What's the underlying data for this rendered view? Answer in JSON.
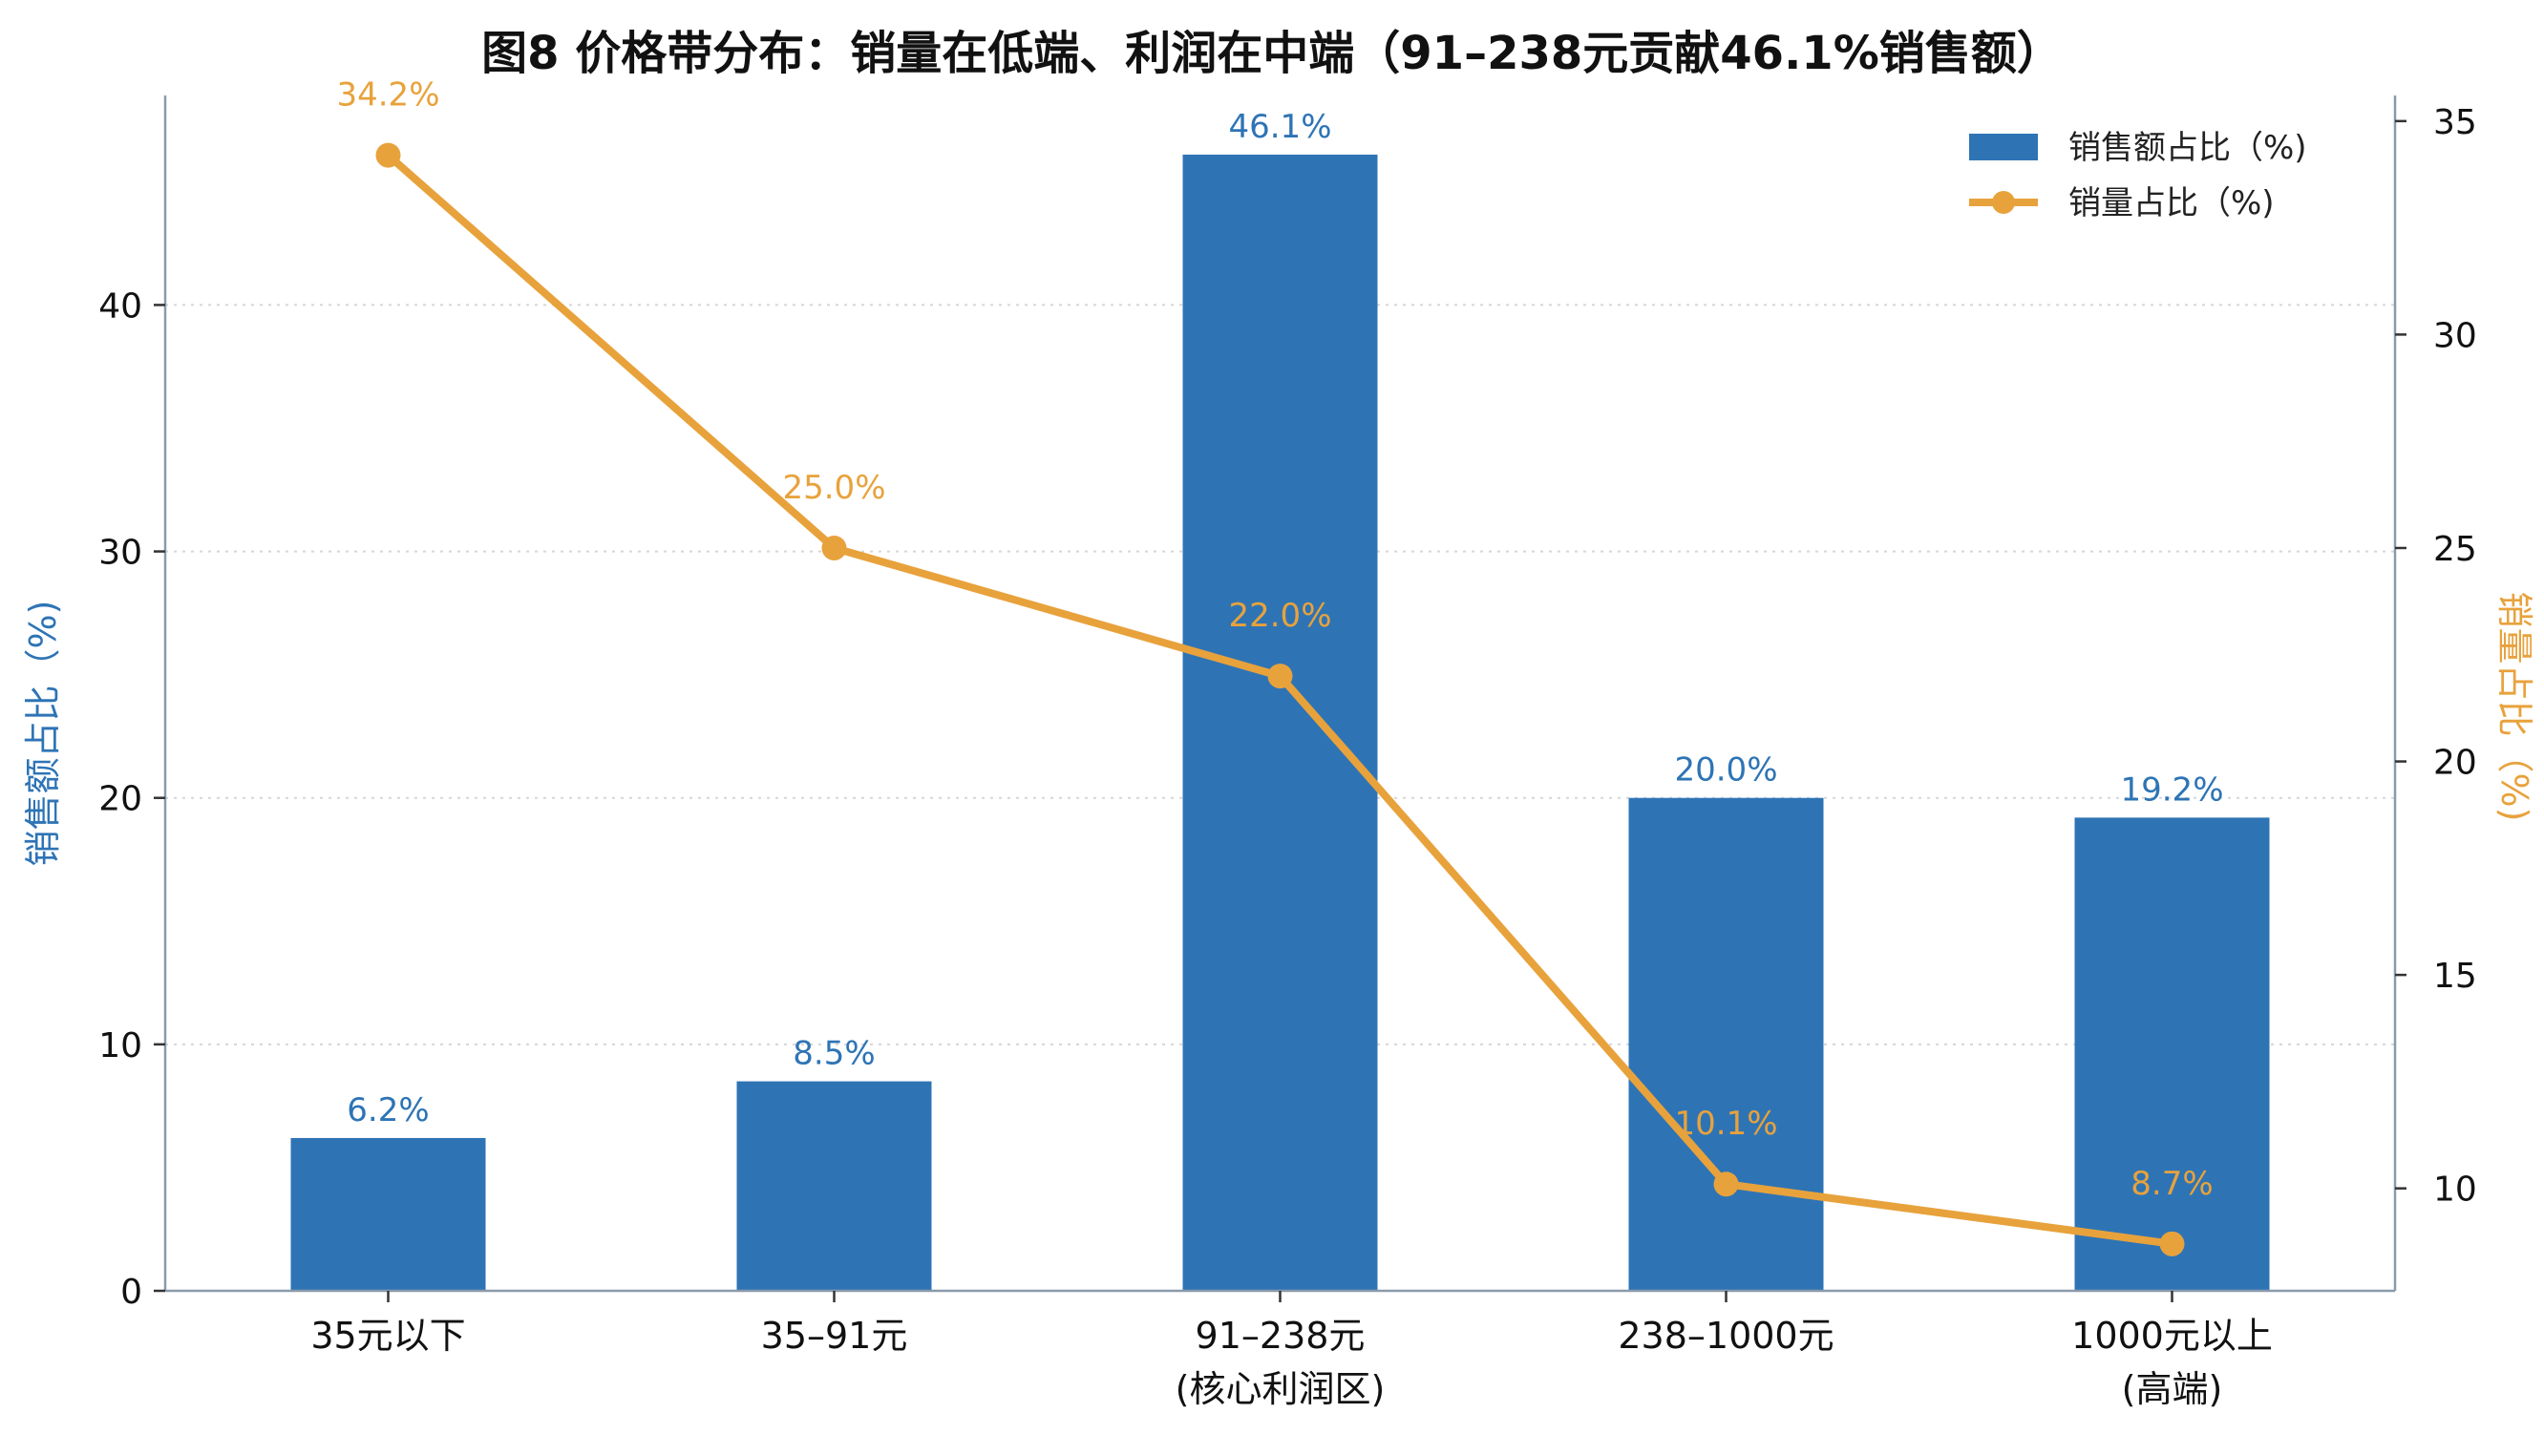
{
  "chart_data": {
    "type": "bar",
    "title": "图8  价格带分布：销量在低端、利润在中端（91–238元贡献46.1%销售额）",
    "categories": [
      "35元以下",
      "35–91元",
      "91–238元\n(核心利润区)",
      "238–1000元",
      "1000元以上\n(高端)"
    ],
    "series": [
      {
        "name": "销售额占比（%)",
        "type": "bar",
        "axis": "left",
        "values": [
          6.2,
          8.5,
          46.1,
          20.0,
          19.2
        ],
        "labels": [
          "6.2%",
          "8.5%",
          "46.1%",
          "20.0%",
          "19.2%"
        ],
        "color": "#2e74b5"
      },
      {
        "name": "销量占比（%)",
        "type": "line",
        "axis": "right",
        "values": [
          34.2,
          25.0,
          22.0,
          10.1,
          8.7
        ],
        "labels": [
          "34.2%",
          "25.0%",
          "22.0%",
          "10.1%",
          "8.7%"
        ],
        "color": "#e8a23c"
      }
    ],
    "ylabel_left": "销售额占比（%)",
    "ylabel_right": "销量占比（%)",
    "ylim_left": [
      0,
      48.5
    ],
    "ylim_right": [
      7.6,
      35.6
    ],
    "yticks_left": [
      0,
      10,
      20,
      30,
      40
    ],
    "yticks_right": [
      10,
      15,
      20,
      25,
      30,
      35
    ],
    "grid": "horizontal dotted",
    "legend_position": "top-right"
  }
}
